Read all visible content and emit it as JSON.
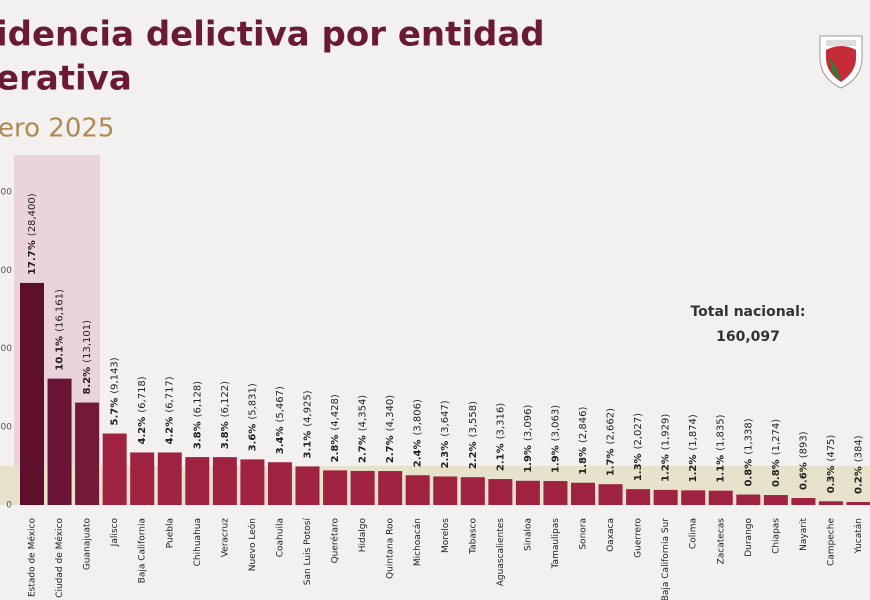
{
  "chart_data": {
    "type": "bar",
    "title_lines": [
      "idencia delictiva por entidad",
      "erativa"
    ],
    "subtitle": "ero 2025",
    "categories": [
      "Estado de México",
      "Ciudad de México",
      "Guanajuato",
      "Jalisco",
      "Baja California",
      "Puebla",
      "Chihuahua",
      "Veracruz",
      "Nuevo León",
      "Coahuila",
      "San Luis Potosí",
      "Querétaro",
      "Hidalgo",
      "Quintana Roo",
      "Michoacán",
      "Morelos",
      "Tabasco",
      "Aguascalientes",
      "Sinaloa",
      "Tamaulipas",
      "Sonora",
      "Oaxaca",
      "Guerrero",
      "Baja California Sur",
      "Colima",
      "Zacatecas",
      "Durango",
      "Chiapas",
      "Nayarit",
      "Campeche",
      "Yucatán"
    ],
    "values": [
      28400,
      16161,
      13101,
      9143,
      6718,
      6717,
      6128,
      6122,
      5831,
      5467,
      4925,
      4428,
      4354,
      4340,
      3806,
      3647,
      3558,
      3316,
      3096,
      3063,
      2846,
      2662,
      2027,
      1929,
      1874,
      1835,
      1338,
      1274,
      893,
      475,
      384
    ],
    "value_labels": [
      "(28,400)",
      "(16,161)",
      "(13,101)",
      "(9,143)",
      "(6,718)",
      "(6,717)",
      "(6,128)",
      "(6,122)",
      "(5,831)",
      "(5,467)",
      "(4,925)",
      "(4,428)",
      "(4,354)",
      "(4,340)",
      "(3,806)",
      "(3,647)",
      "(3,558)",
      "(3,316)",
      "(3,096)",
      "(3,063)",
      "(2,846)",
      "(2,662)",
      "(2,027)",
      "(1,929)",
      "(1,874)",
      "(1,835)",
      "(1,338)",
      "(1,274)",
      "(893)",
      "(475)",
      "(384)"
    ],
    "share_labels": [
      "17.7%",
      "10.1%",
      "8.2%",
      "5.7%",
      "4.2%",
      "4.2%",
      "3.8%",
      "3.8%",
      "3.6%",
      "3.4%",
      "3.1%",
      "2.8%",
      "2.7%",
      "2.7%",
      "2.4%",
      "2.3%",
      "2.2%",
      "2.1%",
      "1.9%",
      "1.9%",
      "1.8%",
      "1.7%",
      "1.3%",
      "1.2%",
      "1.2%",
      "1.1%",
      "0.8%",
      "0.8%",
      "0.6%",
      "0.3%",
      "0.2%"
    ],
    "colors": [
      "#5e0f2b",
      "#6a1535",
      "#731a3a",
      "#9f2241",
      "#9f2241",
      "#9f2241",
      "#9f2241",
      "#9f2241",
      "#9f2241",
      "#9f2241",
      "#9f2241",
      "#9f2241",
      "#9f2241",
      "#9f2241",
      "#9f2241",
      "#9f2241",
      "#9f2241",
      "#9f2241",
      "#9f2241",
      "#9f2241",
      "#9f2241",
      "#9f2241",
      "#9f2241",
      "#9f2241",
      "#9f2241",
      "#9f2241",
      "#9f2241",
      "#9f2241",
      "#9f2241",
      "#9f2241",
      "#9f2241"
    ],
    "ylim": [
      0,
      44500
    ],
    "yticks": [
      0,
      {
        "value": 10000,
        "label": "000"
      },
      {
        "value": 20000,
        "label": "000"
      },
      {
        "value": 30000,
        "label": "000"
      },
      {
        "value": 40000,
        "label": "000"
      }
    ],
    "shaded_band": [
      0,
      5000
    ],
    "annotation": [
      "Total nacional:",
      "160,097"
    ]
  }
}
